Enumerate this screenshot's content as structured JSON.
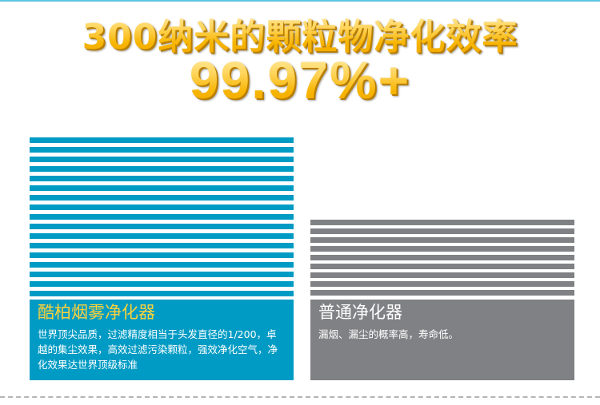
{
  "header": {
    "title_line1": "300纳米的颗粒物净化效率",
    "title_line2": "99.97%+"
  },
  "colors": {
    "accent_blue": "#009bc4",
    "accent_gray": "#808184",
    "title_gold": "#f7b400",
    "product_title_yellow": "#ffd23a"
  },
  "comparison": {
    "premium": {
      "title": "酷柏烟雾净化器",
      "description": "世界顶尖品质，过滤精度相当于头发直径的1/200，卓越的集尘效果，高效过滤污染颗粒，强效净化空气，净化效果达世界顶级标准",
      "bar_count": 17
    },
    "ordinary": {
      "title": "普通净化器",
      "description": "漏烟、漏尘的概率高，寿命低。",
      "bar_count": 9
    }
  }
}
